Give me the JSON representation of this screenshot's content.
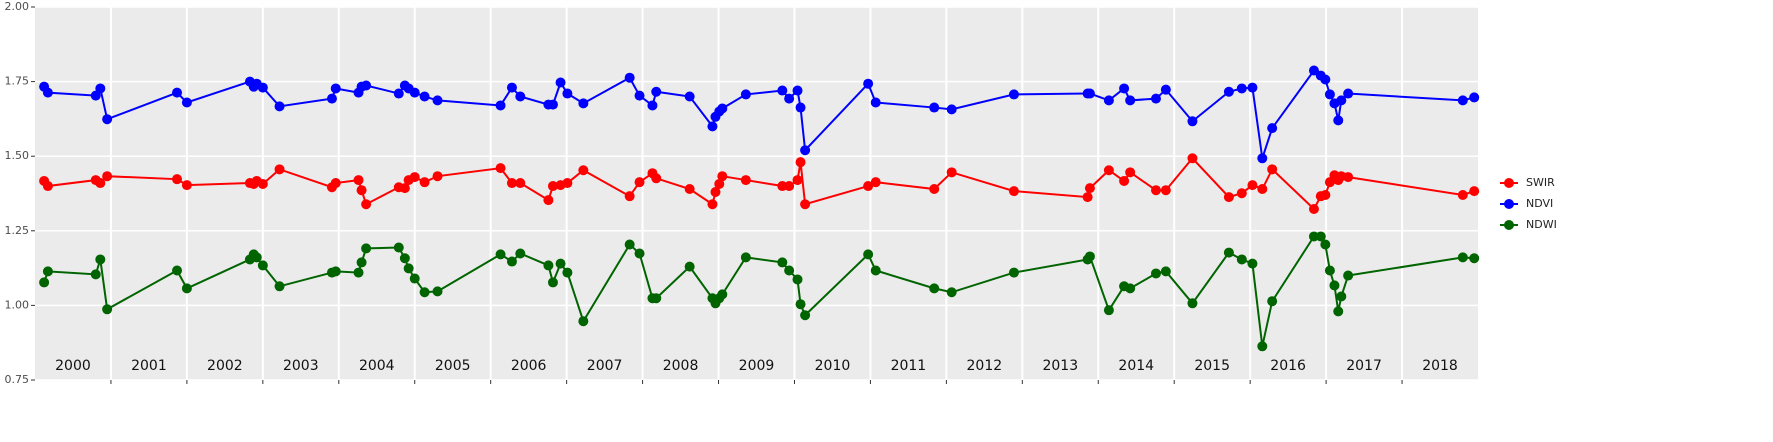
{
  "chart_data": {
    "type": "line",
    "x": [
      2000.12,
      2000.17,
      2000.8,
      2000.86,
      2000.95,
      2001.87,
      2002.0,
      2002.83,
      2002.88,
      2002.92,
      2003.0,
      2003.22,
      2003.91,
      2003.96,
      2004.26,
      2004.3,
      2004.36,
      2004.79,
      2004.87,
      2004.92,
      2005.0,
      2005.13,
      2005.3,
      2006.13,
      2006.28,
      2006.39,
      2006.76,
      2006.82,
      2006.92,
      2007.01,
      2007.22,
      2007.83,
      2007.96,
      2008.13,
      2008.18,
      2008.62,
      2008.92,
      2008.96,
      2009.01,
      2009.05,
      2009.36,
      2009.84,
      2009.93,
      2010.04,
      2010.08,
      2010.14,
      2010.97,
      2011.07,
      2011.84,
      2012.07,
      2012.89,
      2013.86,
      2013.89,
      2014.14,
      2014.34,
      2014.42,
      2014.76,
      2014.89,
      2015.24,
      2015.72,
      2015.89,
      2016.03,
      2016.16,
      2016.29,
      2016.84,
      2016.93,
      2016.99,
      2017.05,
      2017.11,
      2017.16,
      2017.2,
      2017.29,
      2018.8,
      2018.95
    ],
    "series": [
      {
        "name": "SWIR",
        "color": "#ff0000",
        "values": [
          1.417,
          1.4,
          1.42,
          1.41,
          1.433,
          1.423,
          1.403,
          1.41,
          1.407,
          1.417,
          1.407,
          1.456,
          1.396,
          1.41,
          1.42,
          1.386,
          1.339,
          1.396,
          1.393,
          1.42,
          1.43,
          1.413,
          1.433,
          1.46,
          1.41,
          1.41,
          1.353,
          1.4,
          1.403,
          1.41,
          1.453,
          1.366,
          1.413,
          1.443,
          1.426,
          1.39,
          1.339,
          1.38,
          1.407,
          1.433,
          1.42,
          1.4,
          1.4,
          1.42,
          1.48,
          1.339,
          1.4,
          1.413,
          1.39,
          1.446,
          1.383,
          1.363,
          1.393,
          1.453,
          1.417,
          1.446,
          1.386,
          1.386,
          1.493,
          1.363,
          1.376,
          1.403,
          1.39,
          1.456,
          1.323,
          1.366,
          1.37,
          1.413,
          1.436,
          1.42,
          1.433,
          1.43,
          1.37,
          1.383
        ]
      },
      {
        "name": "NDVI",
        "color": "#0000ff",
        "values": [
          1.733,
          1.713,
          1.703,
          1.727,
          1.624,
          1.713,
          1.68,
          1.75,
          1.733,
          1.743,
          1.73,
          1.667,
          1.693,
          1.727,
          1.713,
          1.733,
          1.737,
          1.71,
          1.737,
          1.727,
          1.713,
          1.7,
          1.687,
          1.67,
          1.73,
          1.7,
          1.673,
          1.673,
          1.747,
          1.71,
          1.677,
          1.763,
          1.703,
          1.67,
          1.716,
          1.7,
          1.6,
          1.632,
          1.65,
          1.66,
          1.707,
          1.72,
          1.693,
          1.72,
          1.663,
          1.52,
          1.743,
          1.68,
          1.663,
          1.657,
          1.707,
          1.71,
          1.71,
          1.687,
          1.727,
          1.687,
          1.693,
          1.723,
          1.617,
          1.716,
          1.727,
          1.73,
          1.493,
          1.594,
          1.787,
          1.77,
          1.757,
          1.707,
          1.677,
          1.62,
          1.687,
          1.71,
          1.687,
          1.697
        ]
      },
      {
        "name": "NDWI",
        "color": "#006400",
        "values": [
          1.077,
          1.114,
          1.104,
          1.154,
          0.987,
          1.117,
          1.057,
          1.154,
          1.171,
          1.161,
          1.134,
          1.064,
          1.11,
          1.114,
          1.11,
          1.144,
          1.191,
          1.194,
          1.158,
          1.124,
          1.09,
          1.044,
          1.047,
          1.171,
          1.147,
          1.174,
          1.134,
          1.077,
          1.14,
          1.11,
          0.947,
          1.204,
          1.174,
          1.024,
          1.024,
          1.13,
          1.024,
          1.007,
          1.024,
          1.037,
          1.161,
          1.144,
          1.117,
          1.087,
          1.004,
          0.967,
          1.171,
          1.117,
          1.057,
          1.044,
          1.11,
          1.154,
          1.164,
          0.984,
          1.064,
          1.057,
          1.107,
          1.114,
          1.007,
          1.177,
          1.154,
          1.14,
          0.863,
          1.014,
          1.231,
          1.231,
          1.204,
          1.117,
          1.067,
          0.98,
          1.03,
          1.1,
          1.161,
          1.158
        ]
      }
    ],
    "xlim": [
      2000,
      2019
    ],
    "xgrid": [
      2001,
      2002,
      2003,
      2004,
      2005,
      2006,
      2007,
      2008,
      2009,
      2010,
      2011,
      2012,
      2013,
      2014,
      2015,
      2016,
      2017,
      2018
    ],
    "year_labels": [
      {
        "value": 2000.5,
        "label": "2000"
      },
      {
        "value": 2001.5,
        "label": "2001"
      },
      {
        "value": 2002.5,
        "label": "2002"
      },
      {
        "value": 2003.5,
        "label": "2003"
      },
      {
        "value": 2004.5,
        "label": "2004"
      },
      {
        "value": 2005.5,
        "label": "2005"
      },
      {
        "value": 2006.5,
        "label": "2006"
      },
      {
        "value": 2007.5,
        "label": "2007"
      },
      {
        "value": 2008.5,
        "label": "2008"
      },
      {
        "value": 2009.5,
        "label": "2009"
      },
      {
        "value": 2010.5,
        "label": "2010"
      },
      {
        "value": 2011.5,
        "label": "2011"
      },
      {
        "value": 2012.5,
        "label": "2012"
      },
      {
        "value": 2013.5,
        "label": "2013"
      },
      {
        "value": 2014.5,
        "label": "2014"
      },
      {
        "value": 2015.5,
        "label": "2015"
      },
      {
        "value": 2016.5,
        "label": "2016"
      },
      {
        "value": 2017.5,
        "label": "2017"
      },
      {
        "value": 2018.5,
        "label": "2018"
      }
    ],
    "ylim": [
      0.75,
      2.0
    ],
    "yticks": [
      {
        "value": 0.75,
        "label": "0.75"
      },
      {
        "value": 1.0,
        "label": "1.00"
      },
      {
        "value": 1.25,
        "label": "1.25"
      },
      {
        "value": 1.5,
        "label": "1.50"
      },
      {
        "value": 1.75,
        "label": "1.75"
      },
      {
        "value": 2.0,
        "label": "2.00"
      }
    ],
    "grid": true
  }
}
